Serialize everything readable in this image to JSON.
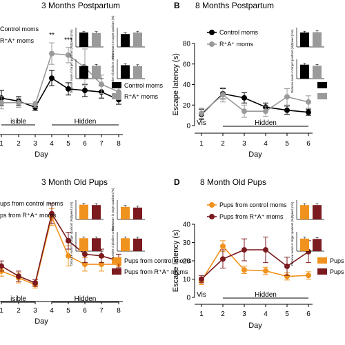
{
  "colors": {
    "control": "#000000",
    "rpa": "#9a9a9a",
    "pup_control": "#f0921e",
    "pup_rpa": "#7b1a1f"
  },
  "chart_data": [
    {
      "id": "A",
      "letter": "",
      "title": "3 Months Postpartum",
      "type": "line",
      "xlabel": "Day",
      "ylabel": "",
      "x": [
        1,
        2,
        3,
        4,
        5,
        6,
        7,
        8
      ],
      "ylim": [
        0,
        80
      ],
      "series": [
        {
          "name": "Control moms",
          "color": "#000000",
          "values": [
            17,
            15,
            11,
            30,
            23,
            22,
            21,
            16
          ],
          "errors": [
            5,
            3,
            2,
            5,
            4,
            4,
            4,
            3
          ]
        },
        {
          "name": "R⁺A⁺ moms",
          "color": "#9a9a9a",
          "values": [
            14,
            14,
            13,
            46,
            45,
            37,
            26,
            21
          ],
          "errors": [
            4,
            3,
            2,
            7,
            5,
            12,
            6,
            5
          ]
        }
      ],
      "significance": [
        {
          "x": 4,
          "label": "**"
        },
        {
          "x": 5,
          "label": "***"
        },
        {
          "x": 6,
          "label": "*"
        }
      ],
      "phases": [
        {
          "label": "isible",
          "from": 1,
          "to": 3
        },
        {
          "label": "Hidden",
          "from": 4,
          "to": 8
        }
      ],
      "legend_top": [
        "Control moms",
        "R⁺A⁺ moms"
      ],
      "legend_side": [
        "Control moms",
        "R⁺A⁺ moms"
      ],
      "insets": [
        {
          "label": "Speed (m/s)",
          "values": [
            0.8,
            0.78
          ]
        },
        {
          "label": "Time swam in target quadrant (%)",
          "values": [
            0.72,
            0.8
          ]
        },
        {
          "label": "Distance swam in target quadrant (%)",
          "values": [
            0.7,
            0.72
          ]
        },
        {
          "label": "Number of platform crosses",
          "values": [
            0.75,
            0.7
          ]
        }
      ]
    },
    {
      "id": "B",
      "letter": "B",
      "title": "8 Months Postpartum",
      "type": "line",
      "xlabel": "Day",
      "ylabel": "Escape latency (s)",
      "x": [
        1,
        2,
        3,
        4,
        5,
        6
      ],
      "ylim": [
        0,
        80
      ],
      "yticks": [
        0,
        20,
        40,
        60,
        80
      ],
      "series": [
        {
          "name": "Control moms",
          "color": "#000000",
          "values": [
            11,
            31,
            27,
            18,
            15,
            13
          ],
          "errors": [
            5,
            5,
            5,
            4,
            4,
            3
          ]
        },
        {
          "name": "R⁺A⁺ moms",
          "color": "#9a9a9a",
          "values": [
            12,
            30,
            14,
            14,
            28,
            23
          ],
          "errors": [
            5,
            7,
            6,
            5,
            8,
            6
          ]
        }
      ],
      "phases": [
        {
          "label": "Vis",
          "from": 1,
          "to": 1
        },
        {
          "label": "Hidden",
          "from": 2,
          "to": 6
        }
      ],
      "legend_top": [
        "Control moms",
        "R⁺A⁺ moms"
      ],
      "legend_side": [
        "",
        ""
      ],
      "insets": [
        {
          "label": "Speed (m/s)",
          "values": [
            0.8,
            0.82
          ]
        },
        {
          "label": "Distance swam in target quadrant (%)",
          "values": [
            0.78,
            0.72
          ]
        }
      ]
    },
    {
      "id": "C",
      "letter": "",
      "title": "3 Month Old Pups",
      "type": "line",
      "xlabel": "Day",
      "ylabel": "",
      "x": [
        1,
        2,
        3,
        4,
        5,
        6,
        7,
        8
      ],
      "ylim": [
        0,
        80
      ],
      "series": [
        {
          "name": "Pups from control moms",
          "color": "#f0921e",
          "values": [
            18,
            14,
            10,
            50,
            27,
            22,
            22,
            22
          ],
          "errors": [
            3,
            3,
            2,
            5,
            6,
            4,
            4,
            4
          ]
        },
        {
          "name": "Pups from R⁺A⁺ moms",
          "color": "#7b1a1f",
          "values": [
            21,
            15,
            11,
            52,
            36,
            28,
            27,
            24
          ],
          "errors": [
            3,
            3,
            2,
            6,
            5,
            5,
            4,
            4
          ]
        }
      ],
      "phases": [
        {
          "label": "isible",
          "from": 1,
          "to": 3
        },
        {
          "label": "Hidden",
          "from": 4,
          "to": 8
        }
      ],
      "legend_top": [
        "ups from control moms",
        "ps from R⁺A⁺ moms"
      ],
      "legend_side": [
        "Pups from control moms",
        "Pups from R⁺A⁺ moms"
      ],
      "insets": [
        {
          "label": "Speed (m/s)",
          "values": [
            0.82,
            0.8
          ]
        },
        {
          "label": "Time swam in target quadrant (%)",
          "values": [
            0.7,
            0.66
          ]
        },
        {
          "label": "Distance swam in target quadrant (%)",
          "values": [
            0.72,
            0.72
          ]
        },
        {
          "label": "Number of platform crosses",
          "values": [
            0.72,
            0.7
          ]
        }
      ]
    },
    {
      "id": "D",
      "letter": "D",
      "title": "8 Month Old Pups",
      "type": "line",
      "xlabel": "Day",
      "ylabel": "Escape latency (s)",
      "x": [
        1,
        2,
        3,
        4,
        5,
        6
      ],
      "ylim": [
        0,
        40
      ],
      "yticks": [
        0,
        10,
        20,
        30,
        40
      ],
      "series": [
        {
          "name": "Pups from control moms",
          "color": "#f0921e",
          "values": [
            9,
            28,
            15,
            14.5,
            11.5,
            12
          ],
          "errors": [
            2,
            3,
            2,
            2,
            2,
            2
          ]
        },
        {
          "name": "Pups from R⁺A⁺ moms",
          "color": "#7b1a1f",
          "values": [
            10,
            21,
            26,
            26,
            17,
            25
          ],
          "errors": [
            2,
            5,
            6,
            7,
            5,
            6
          ]
        }
      ],
      "phases": [
        {
          "label": "Vis",
          "from": 1,
          "to": 1
        },
        {
          "label": "Hidden",
          "from": 2,
          "to": 6
        }
      ],
      "legend_top": [
        "Pups from control moms",
        "Pups from R⁺A⁺ moms"
      ],
      "legend_side": [
        "Pups",
        "Pups"
      ],
      "insets": [
        {
          "label": "Speed (m/s)",
          "values": [
            0.8,
            0.8
          ]
        },
        {
          "label": "Distance swam in target quadrant (%)",
          "values": [
            0.7,
            0.68
          ]
        }
      ]
    }
  ]
}
